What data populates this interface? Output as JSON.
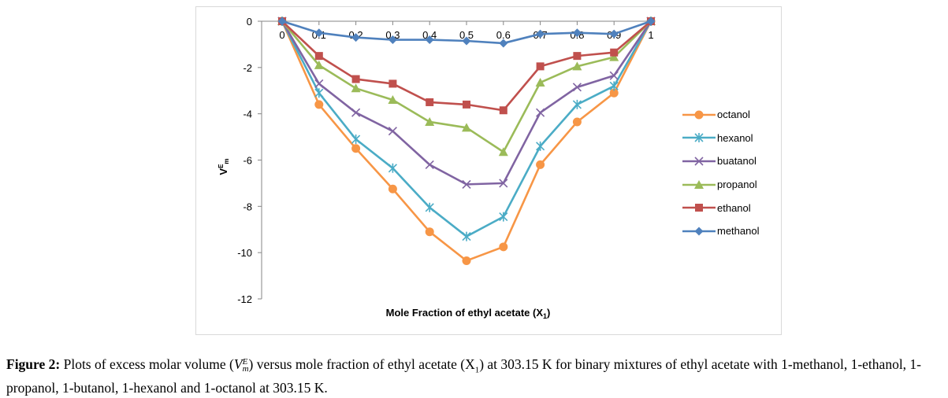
{
  "chart_data": {
    "type": "line",
    "title": "",
    "xlabel": "Mole Fraction of ethyl acetate (X",
    "xlabel_sub": "1",
    "xlabel_tail": ")",
    "ylabel": "V",
    "ylabel_sup": "E",
    "ylabel_sub": "m",
    "x": [
      0,
      0.1,
      0.2,
      0.3,
      0.4,
      0.5,
      0.6,
      0.7,
      0.8,
      0.9,
      1
    ],
    "x_tick_labels": [
      "0",
      "0.1",
      "0.2",
      "0.3",
      "0.4",
      "0.5",
      "0.6",
      "0.7",
      "0.8",
      "0.9",
      "1"
    ],
    "y_ticks": [
      0,
      -2,
      -4,
      -6,
      -8,
      -10,
      -12
    ],
    "y_tick_labels": [
      "0",
      "-2",
      "-4",
      "-6",
      "-8",
      "-10",
      "-12"
    ],
    "ylim": [
      -12,
      0
    ],
    "xlim": [
      0,
      1
    ],
    "grid": false,
    "legend_position": "right",
    "series": [
      {
        "name": "octanol",
        "color": "#f79646",
        "marker": "circle",
        "values": [
          0,
          -3.6,
          -5.5,
          -7.25,
          -9.1,
          -10.35,
          -9.75,
          -6.2,
          -4.35,
          -3.1,
          0
        ]
      },
      {
        "name": "hexanol",
        "color": "#4bacc6",
        "marker": "star",
        "values": [
          0,
          -3.1,
          -5.1,
          -6.35,
          -8.05,
          -9.3,
          -8.45,
          -5.4,
          -3.6,
          -2.8,
          0
        ]
      },
      {
        "name": "buatanol",
        "color": "#8064a2",
        "marker": "x",
        "values": [
          0,
          -2.7,
          -3.95,
          -4.75,
          -6.2,
          -7.05,
          -7.0,
          -3.95,
          -2.85,
          -2.35,
          0
        ]
      },
      {
        "name": "propanol",
        "color": "#9bbb59",
        "marker": "triangle",
        "values": [
          0,
          -1.9,
          -2.9,
          -3.4,
          -4.35,
          -4.6,
          -5.65,
          -2.65,
          -1.95,
          -1.55,
          0
        ]
      },
      {
        "name": "ethanol",
        "color": "#c0504d",
        "marker": "square",
        "values": [
          0,
          -1.5,
          -2.5,
          -2.7,
          -3.5,
          -3.6,
          -3.85,
          -1.95,
          -1.5,
          -1.35,
          0
        ]
      },
      {
        "name": "methanol",
        "color": "#4f81bd",
        "marker": "diamond",
        "values": [
          0,
          -0.5,
          -0.7,
          -0.8,
          -0.8,
          -0.85,
          -0.95,
          -0.55,
          -0.5,
          -0.55,
          0
        ]
      }
    ]
  },
  "caption": {
    "figure_label": "Figure 2:",
    "text_1": " Plots of excess molar volume (",
    "symbol": "V",
    "symbol_sub": "m",
    "symbol_sup": "E",
    "text_2": ") versus mole fraction of ethyl acetate (X",
    "x_sub": "1",
    "text_3": ") at 303.15 K for binary mixtures of ethyl acetate with 1-methanol, 1-ethanol, 1- propanol, 1-butanol, 1-hexanol and 1-octanol at 303.15 K."
  }
}
